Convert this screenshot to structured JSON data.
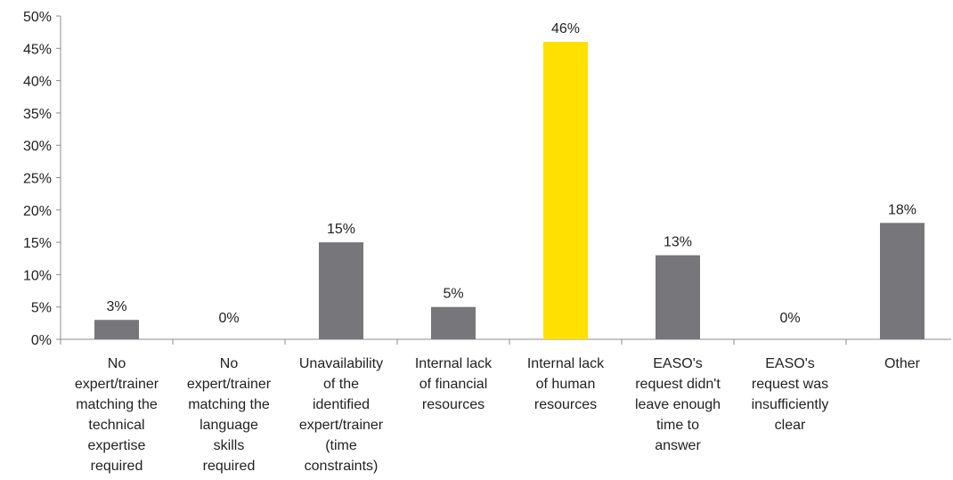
{
  "chart_data": {
    "type": "bar",
    "categories": [
      [
        "No",
        "expert/trainer",
        "matching the",
        "technical",
        "expertise",
        "required"
      ],
      [
        "No",
        "expert/trainer",
        "matching the",
        "language",
        "skills",
        "required"
      ],
      [
        "Unavailability",
        "of the",
        "identified",
        "expert/trainer",
        "(time",
        "constraints)"
      ],
      [
        "Internal lack",
        "of financial",
        "resources"
      ],
      [
        "Internal lack",
        "of human",
        "resources"
      ],
      [
        "EASO's",
        "request didn't",
        "leave enough",
        "time to",
        "answer"
      ],
      [
        "EASO's",
        "request was",
        "insufficiently",
        "clear"
      ],
      [
        "Other"
      ]
    ],
    "values": [
      3,
      0,
      15,
      5,
      46,
      13,
      0,
      18
    ],
    "value_labels": [
      "3%",
      "0%",
      "15%",
      "5%",
      "46%",
      "13%",
      "0%",
      "18%"
    ],
    "y_ticks": [
      "0%",
      "5%",
      "10%",
      "15%",
      "20%",
      "25%",
      "30%",
      "35%",
      "40%",
      "45%",
      "50%"
    ],
    "ylim": [
      0,
      50
    ],
    "colors": {
      "default": "#76767b",
      "highlight": "#ffe000",
      "highlight_index": 4,
      "axis": "#8c8c8c"
    }
  }
}
